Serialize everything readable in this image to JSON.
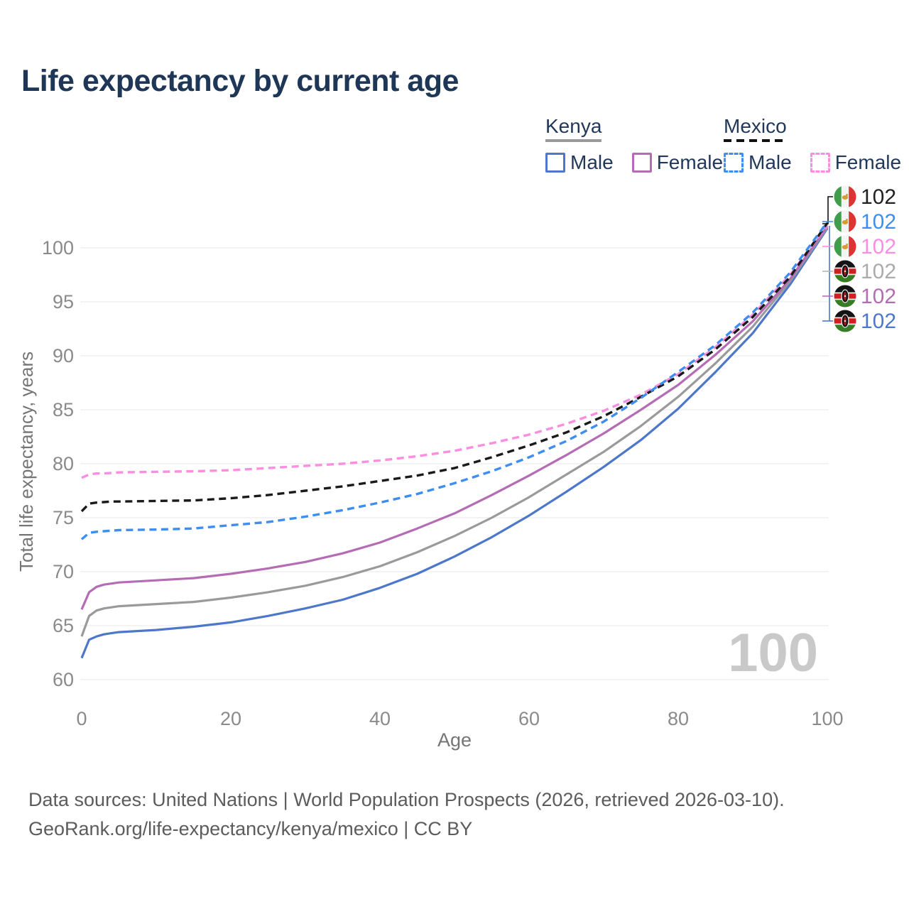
{
  "title": "Life expectancy by current age",
  "legend": {
    "kenya_header": "Kenya",
    "mexico_header": "Mexico",
    "kenya_male_label": "Male",
    "kenya_female_label": "Female",
    "mexico_male_label": "Male",
    "mexico_female_label": "Female"
  },
  "colors": {
    "kenya_male": "#4d77c9",
    "kenya_total": "#9a9a9a",
    "kenya_female": "#b46cb4",
    "mexico_male": "#3d8ef0",
    "mexico_total": "#1a1a1a",
    "mexico_female": "#fb8ee0",
    "grid": "#ececec",
    "axis_text": "#8a8a8a",
    "axis_title_text": "#757575",
    "watermark": "#c9c9c9"
  },
  "watermark": "100",
  "chart_data": {
    "type": "line",
    "title": "Life expectancy by current age",
    "xlabel": "Age",
    "ylabel": "Total life expectancy, years",
    "x_ticks": [
      0,
      20,
      40,
      60,
      80,
      100
    ],
    "y_ticks": [
      60,
      65,
      70,
      75,
      80,
      85,
      90,
      95,
      100
    ],
    "xlim": [
      0,
      100
    ],
    "ylim": [
      60,
      103
    ],
    "grid": true,
    "ages": [
      0,
      1,
      2,
      3,
      4,
      5,
      10,
      15,
      20,
      25,
      30,
      35,
      40,
      45,
      50,
      55,
      60,
      65,
      70,
      75,
      80,
      85,
      90,
      95,
      100
    ],
    "series": [
      {
        "key": "kenya-male",
        "name": "Kenya Male",
        "country": "Kenya",
        "sex": "Male",
        "dashed": false,
        "color_key": "kenya_male",
        "values": [
          62.0,
          63.7,
          64.0,
          64.2,
          64.3,
          64.4,
          64.6,
          64.9,
          65.3,
          65.9,
          66.6,
          67.4,
          68.5,
          69.8,
          71.4,
          73.2,
          75.2,
          77.4,
          79.7,
          82.2,
          85.1,
          88.5,
          92.1,
          96.6,
          101.8
        ]
      },
      {
        "key": "kenya-total",
        "name": "Kenya Both sexes",
        "country": "Kenya",
        "sex": "Total",
        "dashed": false,
        "color_key": "kenya_total",
        "values": [
          64.0,
          65.9,
          66.4,
          66.6,
          66.7,
          66.8,
          67.0,
          67.2,
          67.6,
          68.1,
          68.7,
          69.5,
          70.5,
          71.8,
          73.3,
          75.0,
          76.9,
          79.0,
          81.1,
          83.5,
          86.2,
          89.3,
          92.7,
          96.9,
          101.9
        ]
      },
      {
        "key": "kenya-female",
        "name": "Kenya Female",
        "country": "Kenya",
        "sex": "Female",
        "dashed": false,
        "color_key": "kenya_female",
        "values": [
          66.5,
          68.1,
          68.6,
          68.8,
          68.9,
          69.0,
          69.2,
          69.4,
          69.8,
          70.3,
          70.9,
          71.7,
          72.7,
          74.0,
          75.4,
          77.1,
          78.9,
          80.8,
          82.8,
          85.0,
          87.3,
          90.1,
          93.2,
          97.1,
          102.0
        ]
      },
      {
        "key": "mexico-female",
        "name": "Mexico Female",
        "country": "Mexico",
        "sex": "Female",
        "dashed": true,
        "color_key": "mexico_female",
        "values": [
          78.7,
          79.0,
          79.1,
          79.1,
          79.15,
          79.2,
          79.25,
          79.3,
          79.4,
          79.6,
          79.8,
          80.0,
          80.3,
          80.7,
          81.2,
          81.9,
          82.7,
          83.7,
          84.9,
          86.4,
          88.3,
          90.8,
          93.8,
          97.5,
          102.1
        ]
      },
      {
        "key": "mexico-total",
        "name": "Mexico Both sexes",
        "country": "Mexico",
        "sex": "Total",
        "dashed": true,
        "color_key": "mexico_total",
        "values": [
          75.6,
          76.3,
          76.4,
          76.45,
          76.5,
          76.5,
          76.55,
          76.6,
          76.8,
          77.1,
          77.5,
          77.9,
          78.4,
          78.9,
          79.6,
          80.6,
          81.7,
          82.9,
          84.4,
          86.2,
          88.1,
          90.6,
          93.6,
          97.3,
          102.3
        ]
      },
      {
        "key": "mexico-male",
        "name": "Mexico Male",
        "country": "Mexico",
        "sex": "Male",
        "dashed": true,
        "color_key": "mexico_male",
        "values": [
          73.0,
          73.6,
          73.7,
          73.75,
          73.8,
          73.85,
          73.9,
          74.0,
          74.3,
          74.6,
          75.1,
          75.7,
          76.4,
          77.2,
          78.2,
          79.3,
          80.6,
          82.1,
          83.9,
          86.1,
          88.5,
          91.0,
          94.0,
          97.7,
          102.4
        ]
      }
    ]
  },
  "end_labels": [
    {
      "flag": "mexico",
      "value": "102",
      "color": "#222222",
      "series": "mexico-total"
    },
    {
      "flag": "mexico",
      "value": "102",
      "color": "#3d8ef0",
      "series": "mexico-male"
    },
    {
      "flag": "mexico",
      "value": "102",
      "color": "#fb8ee0",
      "series": "mexico-female"
    },
    {
      "flag": "kenya",
      "value": "102",
      "color": "#ababab",
      "series": "kenya-total"
    },
    {
      "flag": "kenya",
      "value": "102",
      "color": "#b46cb4",
      "series": "kenya-female"
    },
    {
      "flag": "kenya",
      "value": "102",
      "color": "#4d77c9",
      "series": "kenya-male"
    }
  ],
  "footer": {
    "line1": "Data sources: United Nations | World Population Prospects (2026, retrieved 2026-03-10).",
    "line2": "GeoRank.org/life-expectancy/kenya/mexico | CC BY"
  }
}
